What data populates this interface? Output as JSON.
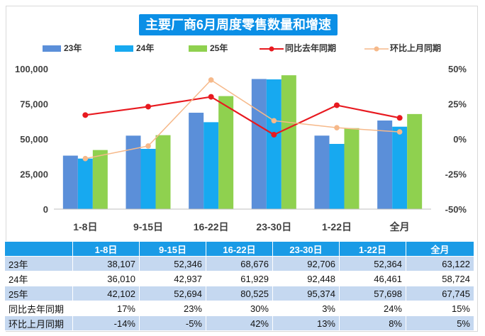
{
  "chart_data": {
    "type": "bar",
    "title": "主要厂商6月周度零售数量和增速",
    "categories": [
      "1-8日",
      "9-15日",
      "16-22日",
      "23-30日",
      "1-22日",
      "全月"
    ],
    "series": [
      {
        "name": "23年",
        "type": "bar",
        "axis": "left",
        "color": "#5b8fd9",
        "values": [
          38107,
          52346,
          68676,
          92706,
          52364,
          63122
        ]
      },
      {
        "name": "24年",
        "type": "bar",
        "axis": "left",
        "color": "#17a9f0",
        "values": [
          36010,
          42937,
          61929,
          92448,
          46461,
          58724
        ]
      },
      {
        "name": "25年",
        "type": "bar",
        "axis": "left",
        "color": "#8fd14f",
        "values": [
          42102,
          52694,
          80525,
          95374,
          57698,
          67745
        ]
      },
      {
        "name": "同比去年同期",
        "type": "line",
        "axis": "right",
        "color": "#e8191f",
        "values": [
          17,
          23,
          30,
          3,
          24,
          15
        ]
      },
      {
        "name": "环比上月同期",
        "type": "line",
        "axis": "right",
        "color": "#f6b98a",
        "values": [
          -14,
          -5,
          42,
          13,
          8,
          5
        ]
      }
    ],
    "ylim_left": [
      0,
      100000
    ],
    "yticks_left": [
      "0",
      "25,000",
      "50,000",
      "75,000",
      "100,000"
    ],
    "ylim_right": [
      -50,
      50
    ],
    "yticks_right": [
      "-50%",
      "-25%",
      "0%",
      "25%",
      "50%"
    ],
    "legend_position": "top",
    "grid": false
  },
  "table": {
    "headers": [
      "",
      "1-8日",
      "9-15日",
      "16-22日",
      "23-30日",
      "1-22日",
      "全月"
    ],
    "rows": [
      [
        "23年",
        "38,107",
        "52,346",
        "68,676",
        "92,706",
        "52,364",
        "63,122"
      ],
      [
        "24年",
        "36,010",
        "42,937",
        "61,929",
        "92,448",
        "46,461",
        "58,724"
      ],
      [
        "25年",
        "42,102",
        "52,694",
        "80,525",
        "95,374",
        "57,698",
        "67,745"
      ],
      [
        "同比去年同期",
        "17%",
        "23%",
        "30%",
        "3%",
        "24%",
        "15%"
      ],
      [
        "环比上月同期",
        "-14%",
        "-5%",
        "42%",
        "13%",
        "8%",
        "5%"
      ]
    ]
  }
}
